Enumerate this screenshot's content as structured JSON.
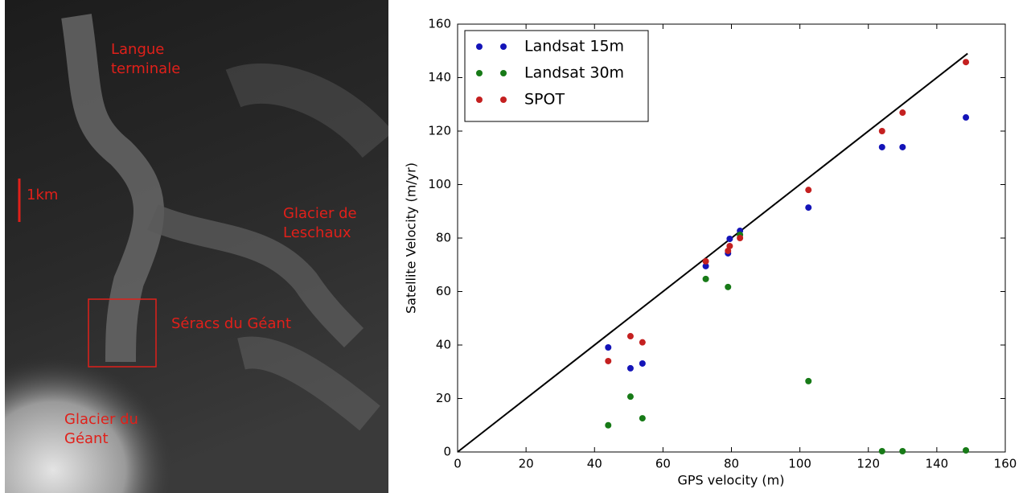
{
  "image_labels": {
    "top": [
      "Langue",
      "terminale"
    ],
    "scale": "1km",
    "right": [
      "Glacier de",
      "Leschaux"
    ],
    "middle": "Séracs du Géant",
    "bottom": [
      "Glacier du",
      "Géant"
    ]
  },
  "chart_data": {
    "type": "scatter",
    "xlabel": "GPS velocity (m)",
    "ylabel": "Satellite Velocity (m/yr)",
    "xlim": [
      0,
      160
    ],
    "ylim": [
      0,
      160
    ],
    "xticks": [
      0,
      20,
      40,
      60,
      80,
      100,
      120,
      140,
      160
    ],
    "yticks": [
      0,
      20,
      40,
      60,
      80,
      100,
      120,
      140,
      160
    ],
    "legend": "upper left",
    "reference_line": {
      "x": [
        0,
        149
      ],
      "y": [
        0,
        149
      ],
      "color": "#000000"
    },
    "series": [
      {
        "name": "Landsat 15m",
        "color": "#1414b8",
        "x": [
          44,
          50.5,
          54,
          72.5,
          79,
          79.5,
          82.5,
          102.5,
          124,
          130,
          148.5
        ],
        "values": [
          39.1,
          31.3,
          33.1,
          69.5,
          74.3,
          79.7,
          82.7,
          91.4,
          114,
          114,
          125.1
        ]
      },
      {
        "name": "Landsat 30m",
        "color": "#177a17",
        "x": [
          44,
          50.5,
          54,
          72.5,
          79,
          82.5,
          102.5,
          124,
          130,
          148.5
        ],
        "values": [
          10,
          20.7,
          12.6,
          64.7,
          61.7,
          81.2,
          26.5,
          0.3,
          0.3,
          0.6
        ]
      },
      {
        "name": "SPOT",
        "color": "#c42020",
        "x": [
          44,
          50.5,
          54,
          72.5,
          79,
          79.5,
          82.5,
          102.5,
          124,
          130,
          148.5
        ],
        "values": [
          34,
          43.3,
          41,
          71.3,
          75.2,
          77,
          80,
          98,
          120,
          126.9,
          145.8
        ]
      }
    ]
  }
}
